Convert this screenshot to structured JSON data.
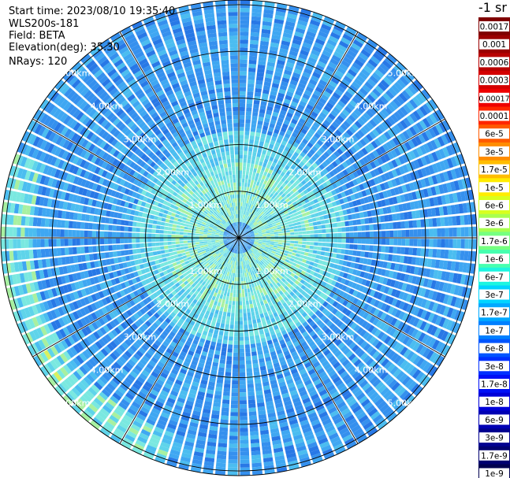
{
  "info": {
    "start_time": "Start time: 2023/08/10 19:35:40",
    "device": "WLS200s-181",
    "field": "Field: BETA",
    "elevation": "Elevation(deg): 35.30",
    "nrays": "NRays: 120"
  },
  "chart_data": {
    "type": "heatmap",
    "projection": "polar",
    "nrays": 120,
    "range_labels": [
      "1.00km",
      "2.00km",
      "3.00km",
      "4.00km",
      "5.00km"
    ],
    "range_rings_km": [
      1,
      2,
      3,
      4,
      5
    ],
    "max_range_km": 5.1,
    "colorbar": {
      "unit": "-1 sr",
      "labels": [
        "0.0017",
        "0.001",
        "0.0006",
        "0.0003",
        "0.00017",
        "0.0001",
        "6e-5",
        "3e-5",
        "1.7e-5",
        "1e-5",
        "6e-6",
        "3e-6",
        "1.7e-6",
        "1e-6",
        "6e-7",
        "3e-7",
        "1.7e-7",
        "1e-7",
        "6e-8",
        "3e-8",
        "1.7e-8",
        "1e-8",
        "6e-9",
        "3e-9",
        "1.7e-9",
        "1e-9"
      ],
      "colors": [
        "#800000",
        "#9a0000",
        "#b80000",
        "#d40000",
        "#ee0000",
        "#ff2600",
        "#ff5a00",
        "#ff8c00",
        "#ffbd00",
        "#ffec00",
        "#d8ff1f",
        "#a8ff4f",
        "#76ff80",
        "#46ffb0",
        "#1cf5e0",
        "#00d4ff",
        "#00a8ff",
        "#0080ff",
        "#0055ff",
        "#0030ff",
        "#0010f6",
        "#0000d8",
        "#0000b4",
        "#000090",
        "#000070",
        "#00004f"
      ]
    }
  }
}
